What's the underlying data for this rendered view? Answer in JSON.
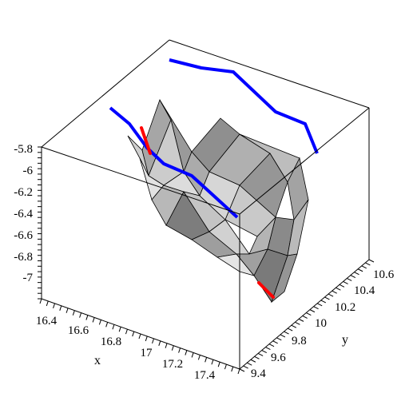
{
  "chart_data": {
    "type": "surface3d",
    "title": "",
    "axes": {
      "x": {
        "label": "x",
        "range": [
          16.3,
          17.5
        ],
        "ticks": [
          "16.4",
          "16.6",
          "16.8",
          "17",
          "17.2",
          "17.4"
        ]
      },
      "y": {
        "label": "y",
        "range": [
          9.3,
          10.7
        ],
        "ticks": [
          "9.4",
          "9.6",
          "9.8",
          "10",
          "10.2",
          "10.4",
          "10.6"
        ]
      },
      "z": {
        "label": "",
        "range": [
          -7.2,
          -5.8
        ],
        "ticks": [
          "-5.8",
          "-6",
          "-6.2",
          "-6.4",
          "-6.6",
          "-6.8",
          "-7"
        ]
      }
    },
    "surface": {
      "color": "#bdbdbd",
      "edge_color": "#000000",
      "style": "faceted grey mesh"
    },
    "curves": [
      {
        "color": "#0000ff",
        "role": "projection on top face of bounding box"
      },
      {
        "color": "#0000ff",
        "role": "curve across surface"
      },
      {
        "color": "#ff0000",
        "role": "short segments on surface"
      }
    ],
    "bounding_box": true,
    "grid": false,
    "legend": false
  }
}
